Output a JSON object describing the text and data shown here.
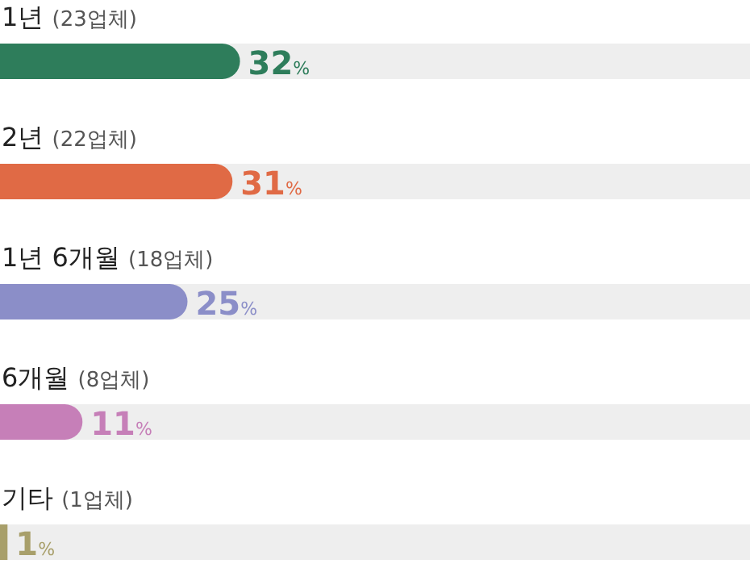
{
  "chart_data": {
    "type": "bar",
    "orientation": "horizontal",
    "categories": [
      "1년 (23업체)",
      "2년 (22업체)",
      "1년 6개월 (18업체)",
      "6개월 (8업체)",
      "기타 (1업체)"
    ],
    "values": [
      32,
      31,
      25,
      11,
      1
    ],
    "colors": [
      "#2e7d5b",
      "#e06a45",
      "#8b8ec8",
      "#c67fb8",
      "#a89f6a"
    ],
    "value_labels": [
      "32%",
      "31%",
      "25%",
      "11%",
      "1%"
    ],
    "xlim": [
      0,
      100
    ]
  }
}
